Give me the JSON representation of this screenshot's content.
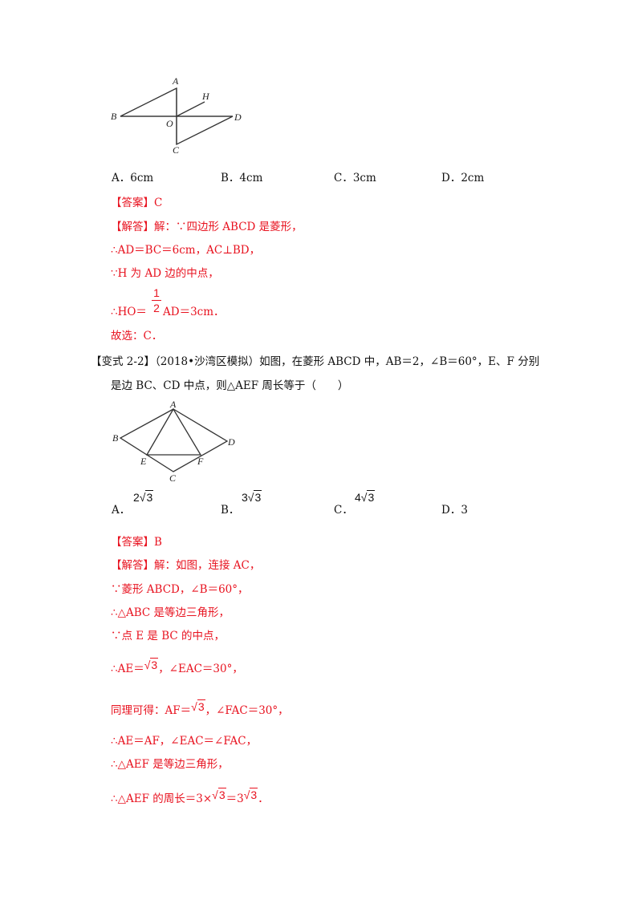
{
  "q1": {
    "figure_labels": {
      "A": "A",
      "B": "B",
      "C": "C",
      "D": "D",
      "O": "O",
      "H": "H"
    },
    "options": [
      "A．6cm",
      "B．4cm",
      "C．3cm",
      "D．2cm"
    ],
    "answer": "【答案】C",
    "solution": [
      "【解答】解：∵四边形 ABCD 是菱形，",
      "∴AD＝BC＝6cm，AC⊥BD，",
      "∵H 为 AD 边的中点，"
    ],
    "fraction_line": {
      "prefix": "∴HO＝",
      "num": "1",
      "den": "2",
      "suffix": "AD＝3cm．"
    },
    "choice": "故选：C．"
  },
  "q2": {
    "title_line1": "【变式 2-2】（2018•沙湾区模拟）如图，在菱形 ABCD 中，AB＝2，∠B＝60°，E、F 分别",
    "title_line2": "是边 BC、CD 中点，则△AEF 周长等于（　　）",
    "figure_labels": {
      "A": "A",
      "B": "B",
      "C": "C",
      "D": "D",
      "E": "E",
      "F": "F"
    },
    "options": [
      {
        "letter": "A．",
        "coef": "2",
        "rad": "3"
      },
      {
        "letter": "B．",
        "coef": "3",
        "rad": "3"
      },
      {
        "letter": "C．",
        "coef": "4",
        "rad": "3"
      },
      {
        "letter": "D．3"
      }
    ],
    "answer": "【答案】B",
    "solution": [
      "【解答】解：如图，连接 AC，",
      "∵菱形 ABCD，∠B＝60°，",
      "∴△ABC 是等边三角形，",
      "∵点 E 是 BC 的中点，"
    ],
    "ae_line": {
      "prefix": "∴AE＝",
      "rad": "3",
      "suffix": "，∠EAC＝30°，"
    },
    "af_line": {
      "prefix": "同理可得：AF＝",
      "rad": "3",
      "suffix": "，∠FAC＝30°，"
    },
    "solution2": [
      "∴AE＝AF，∠EAC＝∠FAC，",
      "∴△AEF 是等边三角形，"
    ],
    "perimeter_line": {
      "prefix": "∴△AEF 的周长＝3×",
      "rad1": "3",
      "mid": "＝3",
      "rad2": "3",
      "suffix": "．"
    }
  },
  "colors": {
    "answer_text": "#e8121f",
    "body_text": "#111111"
  }
}
